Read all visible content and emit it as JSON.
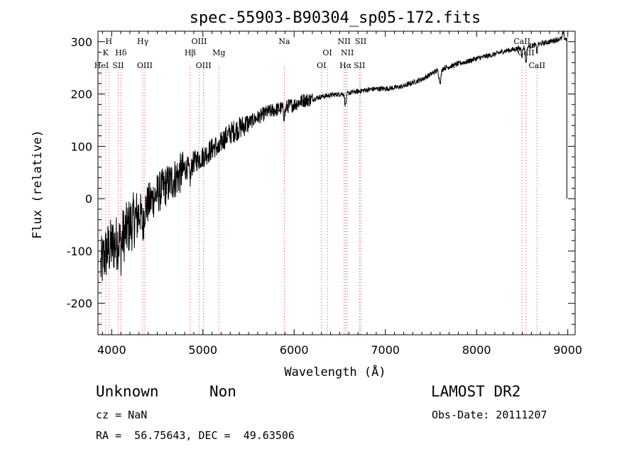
{
  "chart_data": {
    "type": "line",
    "title": "spec-55903-B90304_sp05-172.fits",
    "xlabel": "Wavelength (Å)",
    "ylabel": "Flux (relative)",
    "xlim": [
      3850,
      9080
    ],
    "ylim": [
      -260,
      320
    ],
    "xticks": [
      4000,
      5000,
      6000,
      7000,
      8000,
      9000
    ],
    "yticks": [
      -200,
      -100,
      0,
      100,
      200,
      300
    ],
    "grid": false,
    "line_color": "#000000",
    "marker_color": "#e04040",
    "spectrum_anchors": {
      "x": [
        3880,
        3900,
        3920,
        3950,
        4000,
        4050,
        4100,
        4150,
        4200,
        4300,
        4400,
        4500,
        4600,
        4700,
        4800,
        4900,
        5000,
        5100,
        5200,
        5300,
        5400,
        5500,
        5600,
        5700,
        5800,
        5900,
        6000,
        6100,
        6200,
        6300,
        6400,
        6500,
        6600,
        6700,
        6800,
        6900,
        7000,
        7100,
        7200,
        7300,
        7400,
        7500,
        7600,
        7700,
        7800,
        7900,
        8000,
        8100,
        8200,
        8300,
        8400,
        8500,
        8600,
        8700,
        8800,
        8900,
        8950,
        8990
      ],
      "y": [
        -130,
        -120,
        -110,
        -100,
        -90,
        -85,
        -75,
        -65,
        -50,
        -30,
        -10,
        10,
        25,
        40,
        55,
        70,
        80,
        95,
        110,
        125,
        135,
        145,
        155,
        165,
        170,
        175,
        180,
        188,
        190,
        195,
        198,
        200,
        202,
        205,
        208,
        210,
        210,
        212,
        215,
        222,
        228,
        238,
        248,
        252,
        258,
        262,
        268,
        272,
        276,
        282,
        285,
        288,
        292,
        296,
        300,
        305,
        306,
        305
      ]
    },
    "line_markers": [
      {
        "label": "H",
        "x": 3969,
        "row": 0
      },
      {
        "label": "K",
        "x": 3934,
        "row": 1
      },
      {
        "label": "Hδ",
        "x": 4102,
        "row": 1
      },
      {
        "label": "Hγ",
        "x": 4341,
        "row": 0
      },
      {
        "label": "HeI",
        "x": 3889,
        "row": 2
      },
      {
        "label": "SII",
        "x": 4072,
        "row": 2
      },
      {
        "label": "OIII",
        "x": 4363,
        "row": 2
      },
      {
        "label": "OIII",
        "x": 4959,
        "row": 0
      },
      {
        "label": "Hβ",
        "x": 4861,
        "row": 1
      },
      {
        "label": "Mg",
        "x": 5175,
        "row": 1
      },
      {
        "label": "OIII",
        "x": 5007,
        "row": 2
      },
      {
        "label": "Na",
        "x": 5893,
        "row": 0
      },
      {
        "label": "OI",
        "x": 6364,
        "row": 1
      },
      {
        "label": "OI",
        "x": 6300,
        "row": 2
      },
      {
        "label": "NII",
        "x": 6548,
        "row": 0
      },
      {
        "label": "SII",
        "x": 6731,
        "row": 0
      },
      {
        "label": "NII",
        "x": 6583,
        "row": 1
      },
      {
        "label": "Hα",
        "x": 6563,
        "row": 2
      },
      {
        "label": "SII",
        "x": 6717,
        "row": 2
      },
      {
        "label": "CaII",
        "x": 8498,
        "row": 0
      },
      {
        "label": "CaII",
        "x": 8542,
        "row": 1
      },
      {
        "label": "CaII",
        "x": 8662,
        "row": 2
      }
    ]
  },
  "footer": {
    "class_label": "Unknown",
    "subclass_label": "Non",
    "survey_label": "LAMOST DR2",
    "cz_text": "cz = NaN",
    "obs_date_text": "Obs-Date: 20111207",
    "coords_text": "RA =  56.75643, DEC =  49.63506"
  }
}
